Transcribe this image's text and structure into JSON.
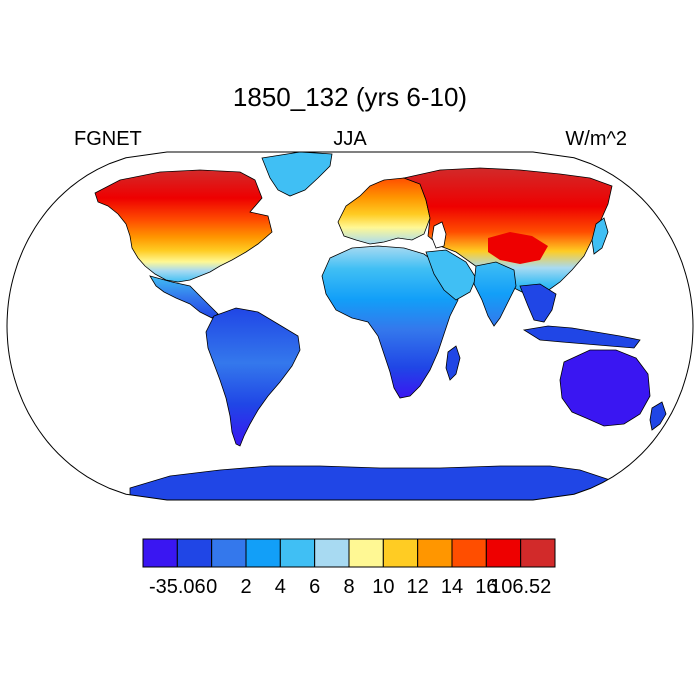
{
  "header": {
    "title": "1850_132 (yrs 6-10)",
    "left_label": "FGNET",
    "center_label": "JJA",
    "right_label": "W/m^2"
  },
  "map": {
    "projection": "robinson",
    "ocean_color": "#ffffff",
    "coastline_color": "#000000"
  },
  "colorbar": {
    "colors": [
      "#3a16f2",
      "#2046e6",
      "#3478ec",
      "#129ff8",
      "#40bff4",
      "#a8daf2",
      "#fff894",
      "#ffcc23",
      "#ff9600",
      "#ff4e00",
      "#ee0000",
      "#d22a2a"
    ],
    "tick_labels": [
      "-35.06",
      "0",
      "2",
      "4",
      "6",
      "8",
      "10",
      "12",
      "14",
      "16",
      "106.52"
    ]
  }
}
